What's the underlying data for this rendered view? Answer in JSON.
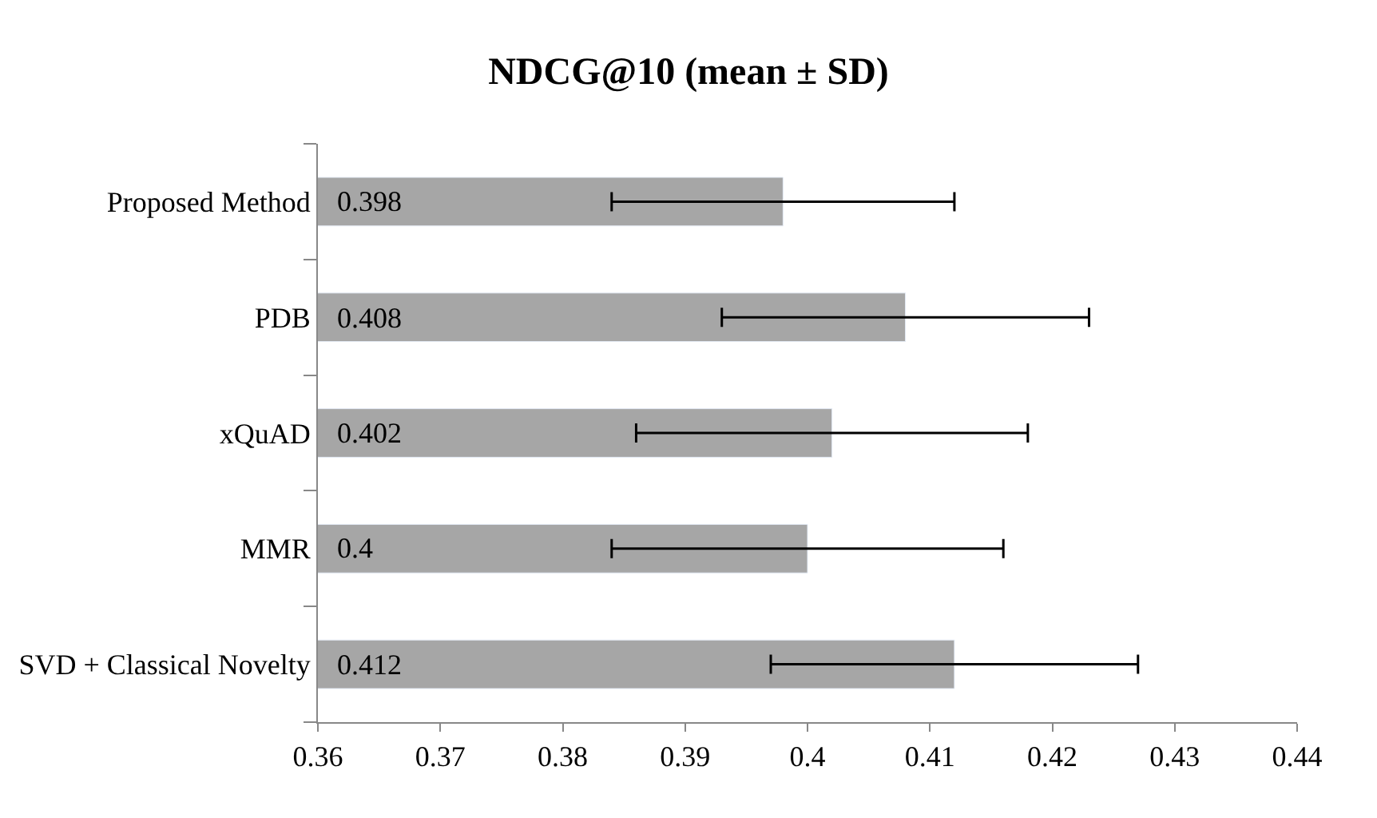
{
  "chart_data": {
    "type": "bar",
    "orientation": "horizontal",
    "title": "NDCG@10 (mean ± SD)",
    "categories": [
      "Proposed Method",
      "PDB",
      "xQuAD",
      "MMR",
      "SVD + Classical Novelty"
    ],
    "values": [
      0.398,
      0.408,
      0.402,
      0.4,
      0.412
    ],
    "errors": [
      0.014,
      0.015,
      0.016,
      0.016,
      0.015
    ],
    "color": "#a6a6a6",
    "xlim": [
      0.36,
      0.44
    ],
    "xticks": [
      0.36,
      0.37,
      0.38,
      0.39,
      0.4,
      0.41,
      0.42,
      0.43,
      0.44
    ],
    "data_labels": true
  }
}
